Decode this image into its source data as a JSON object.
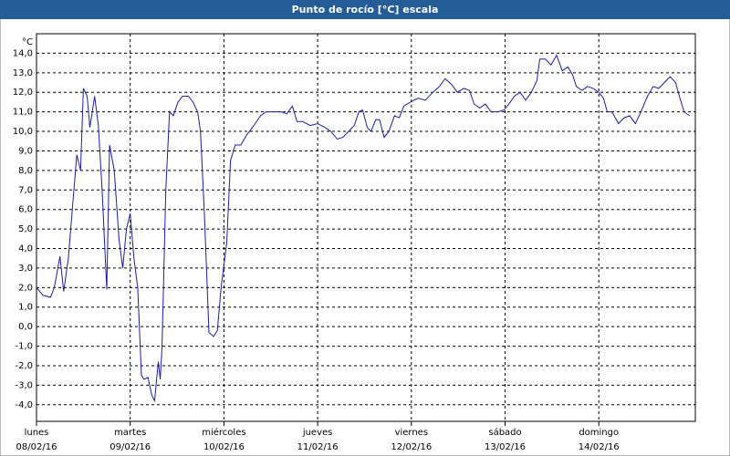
{
  "chart_data": {
    "type": "line",
    "title": "Punto de rocío [°C] escala",
    "ylabel": "°C",
    "x": [
      0,
      0.07,
      0.15,
      0.19,
      0.25,
      0.29,
      0.34,
      0.39,
      0.43,
      0.47,
      0.5,
      0.54,
      0.57,
      0.62,
      0.66,
      0.7,
      0.75,
      0.78,
      0.83,
      0.88,
      0.92,
      0.96,
      1.0,
      1.04,
      1.08,
      1.12,
      1.15,
      1.19,
      1.23,
      1.26,
      1.3,
      1.32,
      1.34,
      1.38,
      1.42,
      1.46,
      1.51,
      1.56,
      1.62,
      1.67,
      1.72,
      1.75,
      1.79,
      1.84,
      1.89,
      1.93,
      1.97,
      2.03,
      2.07,
      2.12,
      2.18,
      2.24,
      2.32,
      2.39,
      2.45,
      2.53,
      2.61,
      2.67,
      2.73,
      2.78,
      2.84,
      2.92,
      3.0,
      3.08,
      3.14,
      3.21,
      3.27,
      3.33,
      3.39,
      3.44,
      3.48,
      3.53,
      3.57,
      3.62,
      3.66,
      3.71,
      3.76,
      3.82,
      3.87,
      3.92,
      3.99,
      4.07,
      4.15,
      4.23,
      4.3,
      4.36,
      4.43,
      4.49,
      4.56,
      4.62,
      4.67,
      4.73,
      4.79,
      4.85,
      4.93,
      4.99,
      5.04,
      5.1,
      5.16,
      5.22,
      5.28,
      5.34,
      5.37,
      5.43,
      5.49,
      5.55,
      5.61,
      5.67,
      5.72,
      5.76,
      5.82,
      5.88,
      5.94,
      6.0,
      6.05,
      6.09,
      6.14,
      6.21,
      6.27,
      6.33,
      6.39,
      6.45,
      6.52,
      6.58,
      6.64,
      6.7,
      6.76,
      6.82,
      6.86,
      6.91,
      6.97
    ],
    "series": [
      {
        "color": "#1c1ca8",
        "values": [
          2.0,
          1.6,
          1.5,
          2.0,
          3.6,
          1.8,
          3.5,
          6.5,
          8.8,
          8.0,
          12.2,
          11.8,
          10.2,
          11.8,
          10.3,
          7.0,
          1.9,
          9.3,
          8.0,
          4.5,
          3.0,
          5.0,
          5.8,
          3.5,
          2.0,
          -2.5,
          -2.7,
          -2.6,
          -3.5,
          -3.8,
          -1.8,
          -2.7,
          -1.0,
          7.0,
          11.0,
          10.8,
          11.5,
          11.8,
          11.8,
          11.5,
          11.0,
          10.0,
          6.0,
          -0.3,
          -0.5,
          -0.2,
          2.0,
          4.3,
          8.5,
          9.3,
          9.3,
          9.8,
          10.3,
          10.8,
          11.0,
          11.0,
          11.0,
          10.9,
          11.3,
          10.5,
          10.5,
          10.3,
          10.4,
          10.2,
          10.0,
          9.6,
          9.7,
          10.0,
          10.3,
          11.0,
          11.1,
          10.2,
          10.0,
          10.6,
          10.6,
          9.7,
          10.0,
          10.8,
          10.7,
          11.3,
          11.5,
          11.7,
          11.6,
          12.0,
          12.3,
          12.7,
          12.4,
          12.0,
          12.2,
          12.1,
          11.4,
          11.2,
          11.4,
          11.0,
          11.0,
          11.1,
          11.4,
          11.8,
          12.0,
          11.6,
          12.0,
          12.6,
          13.7,
          13.7,
          13.4,
          13.9,
          13.1,
          13.3,
          12.9,
          12.3,
          12.1,
          12.3,
          12.2,
          12.0,
          11.7,
          11.0,
          11.0,
          10.4,
          10.7,
          10.8,
          10.4,
          11.0,
          11.8,
          12.3,
          12.2,
          12.5,
          12.8,
          12.5,
          11.8,
          11.0,
          10.8
        ]
      }
    ],
    "xlim": [
      0,
      7.03
    ],
    "xticks": [
      {
        "value": 0,
        "label": "lunes",
        "date": "08/02/16"
      },
      {
        "value": 1,
        "label": "martes",
        "date": "09/02/16"
      },
      {
        "value": 2,
        "label": "miércoles",
        "date": "10/02/16"
      },
      {
        "value": 3,
        "label": "jueves",
        "date": "11/02/16"
      },
      {
        "value": 4,
        "label": "viernes",
        "date": "12/02/16"
      },
      {
        "value": 5,
        "label": "sábado",
        "date": "13/02/16"
      },
      {
        "value": 6,
        "label": "domingo",
        "date": "14/02/16"
      }
    ],
    "ylim": [
      -4.85,
      15.0
    ],
    "yticks": [
      {
        "value": -4,
        "label": "-4,0"
      },
      {
        "value": -3,
        "label": "-3,0"
      },
      {
        "value": -2,
        "label": "-2,0"
      },
      {
        "value": -1,
        "label": "-1,0"
      },
      {
        "value": 0,
        "label": "0,0"
      },
      {
        "value": 1,
        "label": "1,0"
      },
      {
        "value": 2,
        "label": "2,0"
      },
      {
        "value": 3,
        "label": "3,0"
      },
      {
        "value": 4,
        "label": "4,0"
      },
      {
        "value": 5,
        "label": "5,0"
      },
      {
        "value": 6,
        "label": "6,0"
      },
      {
        "value": 7,
        "label": "7,0"
      },
      {
        "value": 8,
        "label": "8,0"
      },
      {
        "value": 9,
        "label": "9,0"
      },
      {
        "value": 10,
        "label": "10,0"
      },
      {
        "value": 11,
        "label": "11,0"
      },
      {
        "value": 12,
        "label": "12,0"
      },
      {
        "value": 13,
        "label": "13,0"
      },
      {
        "value": 14,
        "label": "14,0"
      }
    ],
    "grid": true
  }
}
